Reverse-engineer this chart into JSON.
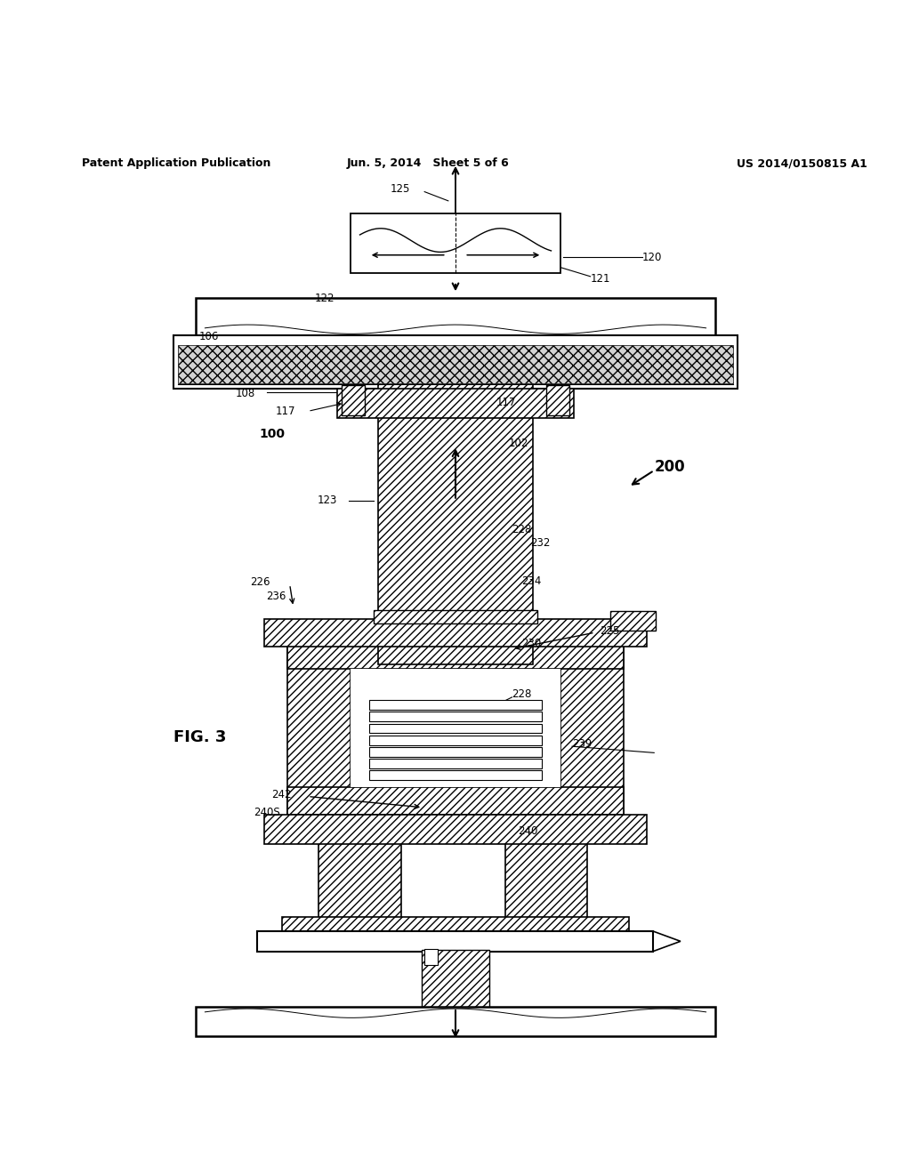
{
  "header_left": "Patent Application Publication",
  "header_mid": "Jun. 5, 2014   Sheet 5 of 6",
  "header_right": "US 2014/0150815 A1",
  "fig_label": "FIG. 3",
  "background_color": "#ffffff",
  "line_color": "#000000"
}
